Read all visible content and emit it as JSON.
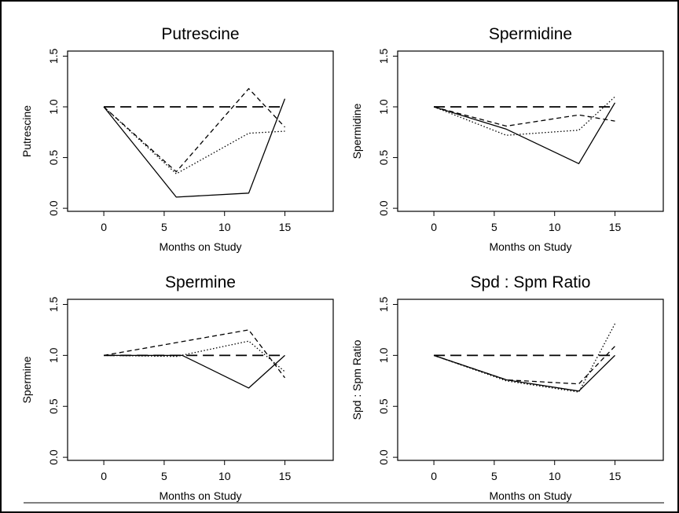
{
  "chart_data": [
    {
      "type": "line",
      "title": "Putrescine",
      "xlabel": "Months on Study",
      "ylabel": "Putrescine",
      "xlim": [
        -3,
        19
      ],
      "ylim": [
        -0.03,
        1.55
      ],
      "xticks": [
        0,
        5,
        10,
        15
      ],
      "yticks": [
        "0.0",
        "0.5",
        "1.0",
        "1.5"
      ],
      "series": [
        {
          "style": "solid",
          "x": [
            0,
            6,
            12,
            15
          ],
          "y": [
            1.0,
            0.11,
            0.15,
            1.08
          ]
        },
        {
          "style": "dashed",
          "x": [
            0,
            6,
            12,
            15
          ],
          "y": [
            1.0,
            0.36,
            1.18,
            0.8
          ]
        },
        {
          "style": "dotted",
          "x": [
            0,
            6,
            12,
            15
          ],
          "y": [
            1.0,
            0.34,
            0.74,
            0.76
          ]
        },
        {
          "style": "long-dashed",
          "x": [
            0,
            15
          ],
          "y": [
            1.0,
            1.0
          ]
        }
      ]
    },
    {
      "type": "line",
      "title": "Spermidine",
      "xlabel": "Months on Study",
      "ylabel": "Spermidine",
      "xlim": [
        -3,
        19
      ],
      "ylim": [
        -0.03,
        1.55
      ],
      "xticks": [
        0,
        5,
        10,
        15
      ],
      "yticks": [
        "0.0",
        "0.5",
        "1.0",
        "1.5"
      ],
      "series": [
        {
          "style": "solid",
          "x": [
            0,
            6,
            12,
            15
          ],
          "y": [
            1.0,
            0.78,
            0.44,
            1.04
          ]
        },
        {
          "style": "dashed",
          "x": [
            0,
            6,
            12,
            15
          ],
          "y": [
            1.0,
            0.81,
            0.92,
            0.86
          ]
        },
        {
          "style": "dotted",
          "x": [
            0,
            6,
            12,
            15
          ],
          "y": [
            1.0,
            0.72,
            0.77,
            1.1
          ]
        },
        {
          "style": "long-dashed",
          "x": [
            0,
            15
          ],
          "y": [
            1.0,
            1.0
          ]
        }
      ]
    },
    {
      "type": "line",
      "title": "Spermine",
      "xlabel": "Months on Study",
      "ylabel": "Spermine",
      "xlim": [
        -3,
        19
      ],
      "ylim": [
        -0.03,
        1.55
      ],
      "xticks": [
        0,
        5,
        10,
        15
      ],
      "yticks": [
        "0.0",
        "0.5",
        "1.0",
        "1.5"
      ],
      "series": [
        {
          "style": "solid",
          "x": [
            0,
            6.5,
            12,
            15
          ],
          "y": [
            1.0,
            1.0,
            0.68,
            1.0
          ]
        },
        {
          "style": "dashed",
          "x": [
            0,
            12,
            15
          ],
          "y": [
            1.0,
            1.25,
            0.78
          ]
        },
        {
          "style": "dotted",
          "x": [
            0,
            6,
            12,
            15
          ],
          "y": [
            1.0,
            0.99,
            1.14,
            0.84
          ]
        },
        {
          "style": "long-dashed",
          "x": [
            0,
            15
          ],
          "y": [
            1.0,
            1.0
          ]
        }
      ]
    },
    {
      "type": "line",
      "title": "Spd : Spm Ratio",
      "xlabel": "Months on Study",
      "ylabel": "Spd : Spm Ratio",
      "xlim": [
        -3,
        19
      ],
      "ylim": [
        -0.03,
        1.55
      ],
      "xticks": [
        0,
        5,
        10,
        15
      ],
      "yticks": [
        "0.0",
        "0.5",
        "1.0",
        "1.5"
      ],
      "series": [
        {
          "style": "solid",
          "x": [
            0,
            6,
            12,
            15
          ],
          "y": [
            1.0,
            0.76,
            0.65,
            1.0
          ]
        },
        {
          "style": "dashed",
          "x": [
            0,
            6,
            12,
            15
          ],
          "y": [
            1.0,
            0.76,
            0.72,
            1.09
          ]
        },
        {
          "style": "dotted",
          "x": [
            0,
            6,
            12,
            15
          ],
          "y": [
            1.0,
            0.75,
            0.64,
            1.31
          ]
        },
        {
          "style": "long-dashed",
          "x": [
            0,
            15
          ],
          "y": [
            1.0,
            1.0
          ]
        }
      ]
    }
  ]
}
